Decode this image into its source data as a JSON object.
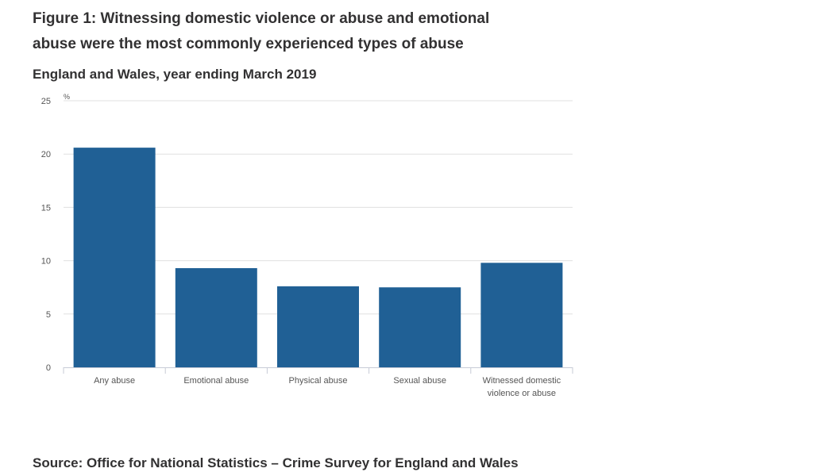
{
  "figure": {
    "title": "Figure 1: Witnessing domestic violence or abuse and emotional abuse were the most commonly experienced types of abuse",
    "subtitle": "England and Wales, year ending March 2019",
    "source": "Source: Office for National Statistics – Crime Survey for England and Wales"
  },
  "chart_data": {
    "type": "bar",
    "unit": "%",
    "categories": [
      "Any abuse",
      "Emotional abuse",
      "Physical abuse",
      "Sexual abuse",
      "Witnessed domestic violence or abuse"
    ],
    "values": [
      20.6,
      9.3,
      7.6,
      7.5,
      9.8
    ],
    "ylim": [
      0,
      25
    ],
    "yticks": [
      0,
      5,
      10,
      15,
      20,
      25
    ],
    "grid": true,
    "bar_color": "#206095",
    "grid_color": "#e0e0e0"
  }
}
